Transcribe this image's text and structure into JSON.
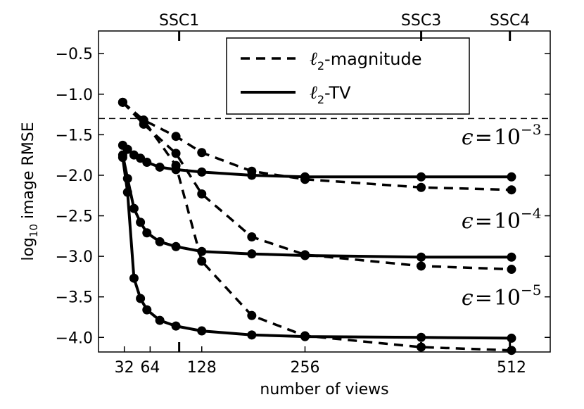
{
  "chart_data": {
    "type": "line",
    "xlabel": "number of views",
    "ylabel_prefix": "log",
    "ylabel_sub": "10",
    "ylabel_rest": " image RMSE",
    "xlim": [
      0,
      560
    ],
    "ylim": [
      -4.18,
      -0.22
    ],
    "xticks": [
      {
        "value": 32,
        "label": "32"
      },
      {
        "value": 64,
        "label": "64"
      },
      {
        "value": 128,
        "label": "128"
      },
      {
        "value": 256,
        "label": "256"
      },
      {
        "value": 512,
        "label": "512"
      }
    ],
    "yticks": [
      {
        "value": -0.5,
        "label": "−0.5"
      },
      {
        "value": -1.0,
        "label": "−1.0"
      },
      {
        "value": -1.5,
        "label": "−1.5"
      },
      {
        "value": -2.0,
        "label": "−2.0"
      },
      {
        "value": -2.5,
        "label": "−2.5"
      },
      {
        "value": -3.0,
        "label": "−3.0"
      },
      {
        "value": -3.5,
        "label": "−3.5"
      },
      {
        "value": -4.0,
        "label": "−4.0"
      }
    ],
    "top_ticks": [
      {
        "value": 100,
        "label": "SSC1"
      },
      {
        "value": 400,
        "label": "SSC3"
      },
      {
        "value": 510,
        "label": "SSC4"
      }
    ],
    "reference_line": {
      "y": -1.3,
      "style": "dashed"
    },
    "legend": {
      "placement": "top",
      "entries": [
        {
          "style": "dashed",
          "math": "ℓ",
          "sub": "2",
          "text": "-magnitude"
        },
        {
          "style": "solid",
          "math": "ℓ",
          "sub": "2",
          "text": "-TV"
        }
      ]
    },
    "series": [
      {
        "style": "dashed",
        "eps": "-3",
        "points": [
          [
            30,
            -1.1
          ],
          [
            56,
            -1.32
          ],
          [
            96,
            -1.52
          ],
          [
            128,
            -1.72
          ],
          [
            190,
            -1.95
          ],
          [
            256,
            -2.05
          ],
          [
            400,
            -2.15
          ],
          [
            512,
            -2.18
          ]
        ]
      },
      {
        "style": "dashed",
        "eps": "-4",
        "points": [
          [
            30,
            -1.1
          ],
          [
            56,
            -1.37
          ],
          [
            96,
            -1.73
          ],
          [
            128,
            -2.23
          ],
          [
            190,
            -2.76
          ],
          [
            256,
            -2.98
          ],
          [
            400,
            -3.12
          ],
          [
            512,
            -3.16
          ]
        ]
      },
      {
        "style": "dashed",
        "eps": "-5",
        "points": [
          [
            30,
            -1.1
          ],
          [
            56,
            -1.32
          ],
          [
            96,
            -1.88
          ],
          [
            128,
            -3.06
          ],
          [
            190,
            -3.73
          ],
          [
            256,
            -3.98
          ],
          [
            400,
            -4.12
          ],
          [
            512,
            -4.16
          ]
        ]
      },
      {
        "style": "solid",
        "eps": "-3",
        "points": [
          [
            30,
            -1.63
          ],
          [
            36,
            -1.68
          ],
          [
            44,
            -1.75
          ],
          [
            52,
            -1.79
          ],
          [
            60,
            -1.84
          ],
          [
            76,
            -1.9
          ],
          [
            96,
            -1.93
          ],
          [
            128,
            -1.96
          ],
          [
            190,
            -2.0
          ],
          [
            256,
            -2.02
          ],
          [
            400,
            -2.02
          ],
          [
            512,
            -2.02
          ]
        ]
      },
      {
        "style": "solid",
        "eps": "-4",
        "points": [
          [
            30,
            -1.75
          ],
          [
            36,
            -2.04
          ],
          [
            44,
            -2.41
          ],
          [
            52,
            -2.58
          ],
          [
            60,
            -2.71
          ],
          [
            76,
            -2.82
          ],
          [
            96,
            -2.88
          ],
          [
            128,
            -2.94
          ],
          [
            190,
            -2.97
          ],
          [
            256,
            -2.99
          ],
          [
            400,
            -3.01
          ],
          [
            512,
            -3.01
          ]
        ]
      },
      {
        "style": "solid",
        "eps": "-5",
        "points": [
          [
            30,
            -1.78
          ],
          [
            36,
            -2.21
          ],
          [
            44,
            -3.27
          ],
          [
            52,
            -3.52
          ],
          [
            60,
            -3.66
          ],
          [
            76,
            -3.79
          ],
          [
            96,
            -3.86
          ],
          [
            128,
            -3.92
          ],
          [
            190,
            -3.97
          ],
          [
            256,
            -3.99
          ],
          [
            400,
            -4.0
          ],
          [
            512,
            -4.01
          ]
        ]
      }
    ],
    "annotations": [
      {
        "text_sym": "ϵ",
        "text_eq": "=",
        "text_base": "10",
        "text_exp": "−3",
        "x": 450,
        "y": -1.62
      },
      {
        "text_sym": "ϵ",
        "text_eq": "=",
        "text_base": "10",
        "text_exp": "−4",
        "x": 450,
        "y": -2.65
      },
      {
        "text_sym": "ϵ",
        "text_eq": "=",
        "text_base": "10",
        "text_exp": "−5",
        "x": 450,
        "y": -3.6
      }
    ]
  }
}
